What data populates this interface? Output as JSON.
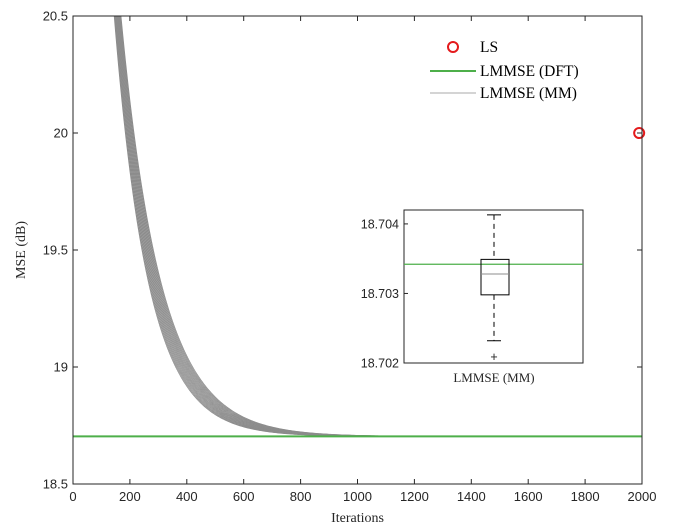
{
  "chart_data": {
    "type": "line",
    "xlabel": "Iterations",
    "ylabel": "MSE (dB)",
    "xlim": [
      0,
      2000
    ],
    "ylim": [
      18.5,
      20.5
    ],
    "xticks": [
      0,
      200,
      400,
      600,
      800,
      1000,
      1200,
      1400,
      1600,
      1800,
      2000
    ],
    "yticks": [
      18.5,
      19,
      19.5,
      20,
      20.5
    ],
    "grid": false,
    "legend_position": "top-right",
    "colors": {
      "ls": "#e41a1c",
      "dft": "#4daf4a",
      "mm": "#8c8c8c",
      "axis": "#262626"
    },
    "series": [
      {
        "name": "LS",
        "style": "marker-circle",
        "color": "#e41a1c",
        "points": [
          {
            "x": 1990,
            "y": 20.0
          }
        ]
      },
      {
        "name": "LMMSE (DFT)",
        "style": "solid-line",
        "color": "#4daf4a",
        "constant": 18.7034
      },
      {
        "name": "LMMSE (MM)",
        "style": "thin-line-bundle",
        "color": "#8c8c8c",
        "asymptote": 18.7032,
        "amplitude_at_x0": 6.0,
        "decay_iterations_range": [
          120,
          140
        ],
        "run_count": 20
      }
    ],
    "inset": {
      "type": "boxplot",
      "category": "LMMSE (MM)",
      "ylim": [
        18.702,
        18.7042
      ],
      "yticks": [
        18.702,
        18.703,
        18.704
      ],
      "box": {
        "q1": 18.70298,
        "median": 18.70328,
        "q3": 18.70349
      },
      "whiskers": [
        18.70232,
        18.70413
      ],
      "outliers": [
        18.70209
      ],
      "reference_line": 18.70342
    }
  }
}
